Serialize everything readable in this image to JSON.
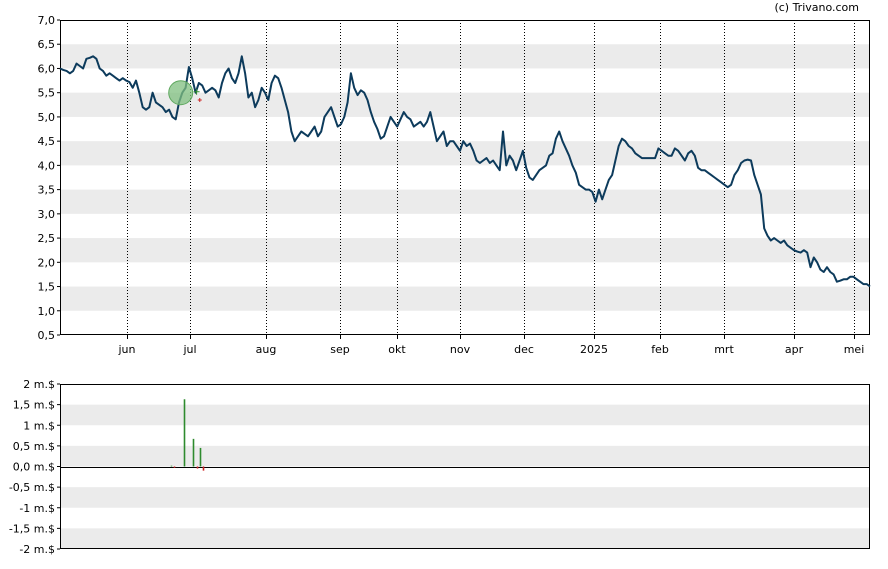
{
  "credit": "(c) Trivano.com",
  "colors": {
    "price_line": "#0d3b5c",
    "band": "#ebebeb",
    "volume_up": "#2e8b2e",
    "volume_down": "#cc2222",
    "marker_fill": "#7fbf7f"
  },
  "chart_data": [
    {
      "type": "line",
      "title": "",
      "xlabel": "",
      "ylabel": "",
      "ylim": [
        0.5,
        7.0
      ],
      "y_ticks": [
        "7,0",
        "6,5",
        "6,0",
        "5,5",
        "5,0",
        "4,5",
        "4,0",
        "3,5",
        "3,0",
        "2,5",
        "2,0",
        "1,5",
        "1,0",
        "0,5"
      ],
      "x_ticks": [
        "jun",
        "jul",
        "aug",
        "sep",
        "okt",
        "nov",
        "dec",
        "2025",
        "feb",
        "mrt",
        "apr",
        "mei"
      ],
      "grid": "vertical dotted, alternating horizontal bands",
      "x_index_range": [
        0,
        255
      ],
      "month_tick_index": [
        21,
        41,
        65,
        88,
        106,
        126,
        146,
        168,
        189,
        209,
        231,
        250
      ],
      "series": [
        {
          "values": [
            6.0,
            5.97,
            5.95,
            5.9,
            5.95,
            6.1,
            6.05,
            6.0,
            6.2,
            6.22,
            6.25,
            6.2,
            6.0,
            5.95,
            5.85,
            5.9,
            5.85,
            5.8,
            5.75,
            5.8,
            5.75,
            5.72,
            5.6,
            5.75,
            5.5,
            5.2,
            5.15,
            5.2,
            5.5,
            5.3,
            5.25,
            5.2,
            5.1,
            5.15,
            5.0,
            4.95,
            5.3,
            5.5,
            5.6,
            6.03,
            5.8,
            5.5,
            5.7,
            5.65,
            5.5,
            5.55,
            5.6,
            5.55,
            5.4,
            5.7,
            5.9,
            6.0,
            5.8,
            5.7,
            5.9,
            6.25,
            5.9,
            5.4,
            5.5,
            5.2,
            5.35,
            5.6,
            5.5,
            5.35,
            5.7,
            5.85,
            5.8,
            5.6,
            5.35,
            5.1,
            4.7,
            4.5,
            4.6,
            4.7,
            4.65,
            4.6,
            4.7,
            4.8,
            4.6,
            4.7,
            5.0,
            5.1,
            5.2,
            5.0,
            4.8,
            4.85,
            5.0,
            5.3,
            5.9,
            5.6,
            5.45,
            5.55,
            5.5,
            5.35,
            5.1,
            4.9,
            4.75,
            4.55,
            4.6,
            4.8,
            5.0,
            4.9,
            4.8,
            4.95,
            5.1,
            5.0,
            4.95,
            4.8,
            4.85,
            4.9,
            4.8,
            4.9,
            5.1,
            4.8,
            4.5,
            4.6,
            4.7,
            4.4,
            4.5,
            4.5,
            4.4,
            4.3,
            4.5,
            4.4,
            4.45,
            4.3,
            4.1,
            4.05,
            4.1,
            4.15,
            4.05,
            4.1,
            4.0,
            3.9,
            4.7,
            4.0,
            4.2,
            4.1,
            3.9,
            4.1,
            4.3,
            3.95,
            3.75,
            3.7,
            3.8,
            3.9,
            3.95,
            4.0,
            4.2,
            4.25,
            4.55,
            4.7,
            4.5,
            4.35,
            4.2,
            4.0,
            3.85,
            3.6,
            3.55,
            3.5,
            3.5,
            3.45,
            3.25,
            3.5,
            3.3,
            3.5,
            3.7,
            3.8,
            4.1,
            4.4,
            4.55,
            4.5,
            4.4,
            4.35,
            4.25,
            4.2,
            4.15,
            4.15,
            4.15,
            4.15,
            4.15,
            4.35,
            4.3,
            4.25,
            4.2,
            4.2,
            4.35,
            4.3,
            4.2,
            4.1,
            4.25,
            4.3,
            4.2,
            3.95,
            3.9,
            3.9,
            3.85,
            3.8,
            3.75,
            3.7,
            3.65,
            3.6,
            3.55,
            3.6,
            3.8,
            3.9,
            4.05,
            4.1,
            4.12,
            4.1,
            3.8,
            3.6,
            3.4,
            2.7,
            2.55,
            2.45,
            2.5,
            2.45,
            2.4,
            2.45,
            2.35,
            2.3,
            2.25,
            2.22,
            2.2,
            2.25,
            2.2,
            1.9,
            2.1,
            2.0,
            1.85,
            1.8,
            1.9,
            1.8,
            1.75,
            1.6,
            1.62,
            1.65,
            1.65,
            1.7,
            1.7,
            1.65,
            1.6,
            1.55,
            1.55,
            1.5
          ]
        }
      ],
      "annotations": [
        {
          "type": "event-circle",
          "x_index": 38,
          "y": 5.5
        },
        {
          "type": "event-up",
          "x_index": 43,
          "y": 5.52
        },
        {
          "type": "event-down",
          "x_index": 44,
          "y": 5.35
        }
      ]
    },
    {
      "type": "bar",
      "title": "",
      "xlabel": "",
      "ylabel": "",
      "ylim": [
        -2.0,
        2.0
      ],
      "y_ticks": [
        "2 m.$",
        "1,5 m.$",
        "1 m.$",
        "0,5 m.$",
        "0,0 m.$",
        "-0,5 m.$",
        "-1 m.$",
        "-1,5 m.$",
        "-2 m.$"
      ],
      "x_index_range": [
        0,
        255
      ],
      "series": [
        {
          "points": [
            {
              "x_index": 35,
              "value": 0.02
            },
            {
              "x_index": 36,
              "value": -0.03
            },
            {
              "x_index": 39,
              "value": 1.63
            },
            {
              "x_index": 42,
              "value": 0.67
            },
            {
              "x_index": 43,
              "value": -0.05
            },
            {
              "x_index": 44,
              "value": 0.45
            },
            {
              "x_index": 45,
              "value": -0.1
            }
          ]
        }
      ]
    }
  ]
}
